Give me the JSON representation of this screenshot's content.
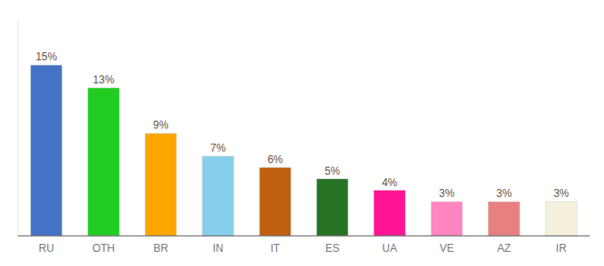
{
  "chart_data": {
    "type": "bar",
    "categories": [
      "RU",
      "OTH",
      "BR",
      "IN",
      "IT",
      "ES",
      "UA",
      "VE",
      "AZ",
      "IR"
    ],
    "values": [
      15,
      13,
      9,
      7,
      6,
      5,
      4,
      3,
      3,
      3
    ],
    "value_labels": [
      "15%",
      "13%",
      "9%",
      "7%",
      "6%",
      "5%",
      "4%",
      "3%",
      "3%",
      "3%"
    ],
    "colors": [
      "#4472C4",
      "#22CC22",
      "#FFA500",
      "#87CEEB",
      "#C06010",
      "#267326",
      "#FF1493",
      "#FF85C0",
      "#E88080",
      "#F5F0DC"
    ],
    "ylim": [
      0,
      19
    ],
    "data_labels": true,
    "grid": false,
    "tick_labels": "x"
  }
}
